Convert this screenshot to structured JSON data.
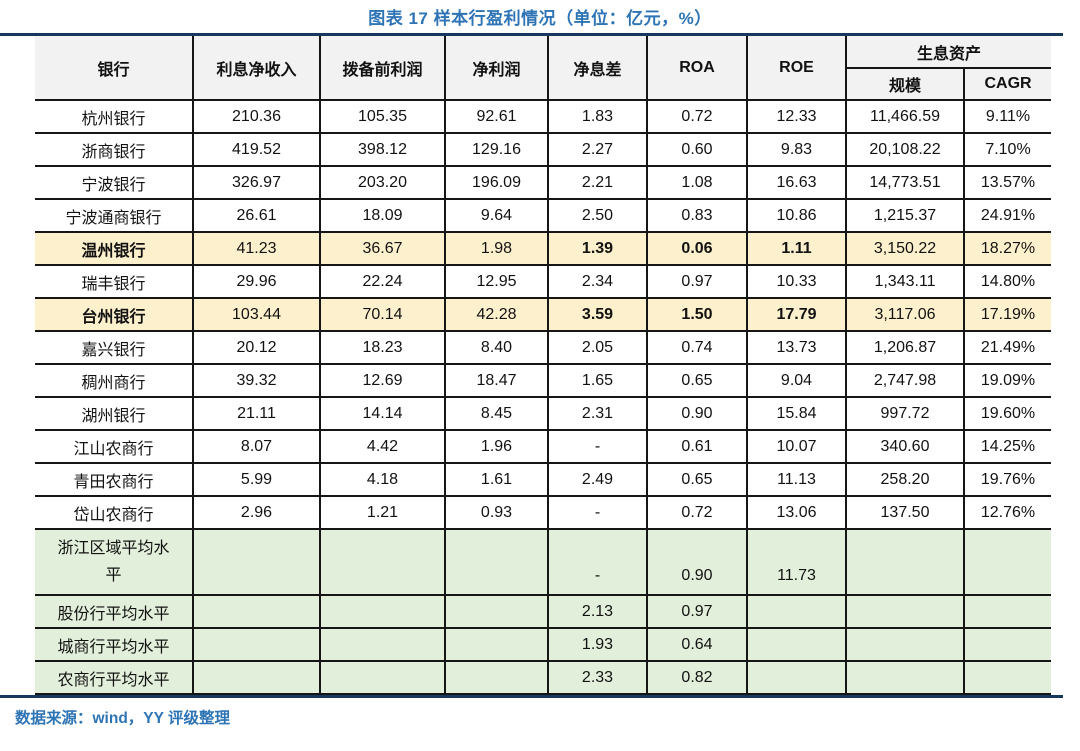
{
  "title": "图表 17 样本行盈利情况（单位：亿元，%）",
  "footer": {
    "source": "数据来源：wind，YY 评级整理"
  },
  "colors": {
    "accent_blue": "#2e74b5",
    "rule_navy": "#17375e",
    "header_gray": "#f2f2f2",
    "highlight_yellow": "#fdf0cc",
    "average_green": "#e2efda",
    "border_black": "#161616"
  },
  "table": {
    "header": {
      "bank": "银行",
      "cols": [
        "利息净收入",
        "拨备前利润",
        "净利润",
        "净息差",
        "ROA",
        "ROE"
      ],
      "group": "生息资产",
      "subcols": [
        "规模",
        "CAGR"
      ]
    },
    "rows": [
      {
        "name": "杭州银行",
        "style": "white",
        "emphasis": false,
        "values": [
          "210.36",
          "105.35",
          "92.61",
          "1.83",
          "0.72",
          "12.33",
          "11,466.59",
          "9.11%"
        ]
      },
      {
        "name": "浙商银行",
        "style": "white",
        "emphasis": false,
        "values": [
          "419.52",
          "398.12",
          "129.16",
          "2.27",
          "0.60",
          "9.83",
          "20,108.22",
          "7.10%"
        ]
      },
      {
        "name": "宁波银行",
        "style": "white",
        "emphasis": false,
        "values": [
          "326.97",
          "203.20",
          "196.09",
          "2.21",
          "1.08",
          "16.63",
          "14,773.51",
          "13.57%"
        ]
      },
      {
        "name": "宁波通商银行",
        "style": "white",
        "emphasis": false,
        "values": [
          "26.61",
          "18.09",
          "9.64",
          "2.50",
          "0.83",
          "10.86",
          "1,215.37",
          "24.91%"
        ]
      },
      {
        "name": "温州银行",
        "style": "yellow",
        "emphasis": true,
        "values": [
          "41.23",
          "36.67",
          "1.98",
          "1.39",
          "0.06",
          "1.11",
          "3,150.22",
          "18.27%"
        ]
      },
      {
        "name": "瑞丰银行",
        "style": "white",
        "emphasis": false,
        "values": [
          "29.96",
          "22.24",
          "12.95",
          "2.34",
          "0.97",
          "10.33",
          "1,343.11",
          "14.80%"
        ]
      },
      {
        "name": "台州银行",
        "style": "yellow",
        "emphasis": true,
        "values": [
          "103.44",
          "70.14",
          "42.28",
          "3.59",
          "1.50",
          "17.79",
          "3,117.06",
          "17.19%"
        ]
      },
      {
        "name": "嘉兴银行",
        "style": "white",
        "emphasis": false,
        "values": [
          "20.12",
          "18.23",
          "8.40",
          "2.05",
          "0.74",
          "13.73",
          "1,206.87",
          "21.49%"
        ]
      },
      {
        "name": "稠州商行",
        "style": "white",
        "emphasis": false,
        "values": [
          "39.32",
          "12.69",
          "18.47",
          "1.65",
          "0.65",
          "9.04",
          "2,747.98",
          "19.09%"
        ]
      },
      {
        "name": "湖州银行",
        "style": "white",
        "emphasis": false,
        "values": [
          "21.11",
          "14.14",
          "8.45",
          "2.31",
          "0.90",
          "15.84",
          "997.72",
          "19.60%"
        ]
      },
      {
        "name": "江山农商行",
        "style": "white",
        "emphasis": false,
        "values": [
          "8.07",
          "4.42",
          "1.96",
          "-",
          "0.61",
          "10.07",
          "340.60",
          "14.25%"
        ]
      },
      {
        "name": "青田农商行",
        "style": "white",
        "emphasis": false,
        "values": [
          "5.99",
          "4.18",
          "1.61",
          "2.49",
          "0.65",
          "11.13",
          "258.20",
          "19.76%"
        ]
      },
      {
        "name": "岱山农商行",
        "style": "white",
        "emphasis": false,
        "values": [
          "2.96",
          "1.21",
          "0.93",
          "-",
          "0.72",
          "13.06",
          "137.50",
          "12.76%"
        ]
      },
      {
        "name": "浙江区域平均水平",
        "style": "green",
        "tall": true,
        "emphasis": false,
        "values": [
          "",
          "",
          "",
          "-",
          "0.90",
          "11.73",
          "",
          ""
        ]
      },
      {
        "name": "股份行平均水平",
        "style": "green",
        "emphasis": false,
        "values": [
          "",
          "",
          "",
          "2.13",
          "0.97",
          "",
          "",
          ""
        ]
      },
      {
        "name": "城商行平均水平",
        "style": "green",
        "emphasis": false,
        "values": [
          "",
          "",
          "",
          "1.93",
          "0.64",
          "",
          "",
          ""
        ]
      },
      {
        "name": "农商行平均水平",
        "style": "green",
        "emphasis": false,
        "values": [
          "",
          "",
          "",
          "2.33",
          "0.82",
          "",
          "",
          ""
        ]
      }
    ]
  }
}
